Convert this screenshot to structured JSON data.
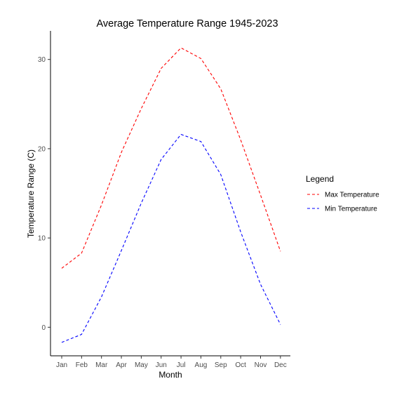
{
  "chart_data": {
    "type": "line",
    "title": "Average Temperature Range 1945-2023",
    "xlabel": "Month",
    "ylabel": "Temperature Range (C)",
    "categories": [
      "Jan",
      "Feb",
      "Mar",
      "Apr",
      "May",
      "Jun",
      "Jul",
      "Aug",
      "Sep",
      "Oct",
      "Nov",
      "Dec"
    ],
    "ylim": [
      -3.2,
      33.2
    ],
    "yticks": [
      0,
      10,
      20,
      30
    ],
    "grid": false,
    "legend": {
      "title": "Legend",
      "position": "right"
    },
    "series": [
      {
        "name": "Max Temperature",
        "color": "#ff0000",
        "line_style": "dashed",
        "values": [
          6.6,
          8.3,
          13.7,
          19.6,
          24.5,
          29.0,
          31.3,
          30.1,
          26.7,
          21.0,
          14.8,
          8.5
        ]
      },
      {
        "name": "Min Temperature",
        "color": "#0000ff",
        "line_style": "dashed",
        "values": [
          -1.7,
          -0.8,
          3.4,
          8.6,
          13.9,
          18.8,
          21.6,
          20.8,
          17.1,
          10.7,
          4.8,
          0.3
        ]
      }
    ]
  }
}
